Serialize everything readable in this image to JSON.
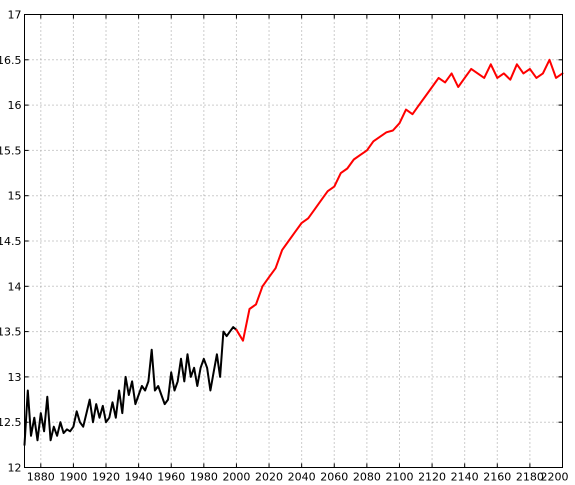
{
  "chart_data": {
    "type": "line",
    "title": "",
    "xlabel": "",
    "ylabel": "",
    "xlim": [
      1870,
      2200
    ],
    "ylim": [
      12,
      17
    ],
    "grid": true,
    "x_ticks": [
      1880,
      1900,
      1920,
      1940,
      1960,
      1980,
      2000,
      2020,
      2040,
      2060,
      2080,
      2100,
      2120,
      2140,
      2160,
      2180,
      2200
    ],
    "x_tick_labels": [
      "1880",
      "1900",
      "1920",
      "1940",
      "1960",
      "1980",
      "2000",
      "2020",
      "2040",
      "2060",
      "2080",
      "2100",
      "2120",
      "2140",
      "2160",
      "2180",
      "2200"
    ],
    "y_ticks": [
      12,
      12.5,
      13,
      13.5,
      14,
      14.5,
      15,
      15.5,
      16,
      16.5,
      17
    ],
    "y_tick_labels": [
      "12",
      "12.5",
      "13",
      "13.5",
      "14",
      "14.5",
      "15",
      "15.5",
      "16",
      "16.5",
      "17"
    ],
    "series": [
      {
        "color": "#000000",
        "x": [
          1870,
          1872,
          1874,
          1876,
          1878,
          1880,
          1882,
          1884,
          1886,
          1888,
          1890,
          1892,
          1894,
          1896,
          1898,
          1900,
          1902,
          1904,
          1906,
          1908,
          1910,
          1912,
          1914,
          1916,
          1918,
          1920,
          1922,
          1924,
          1926,
          1928,
          1930,
          1932,
          1934,
          1936,
          1938,
          1940,
          1942,
          1944,
          1946,
          1948,
          1950,
          1952,
          1954,
          1956,
          1958,
          1960,
          1962,
          1964,
          1966,
          1968,
          1970,
          1972,
          1974,
          1976,
          1978,
          1980,
          1982,
          1984,
          1986,
          1988,
          1990,
          1992,
          1994,
          1996,
          1998,
          2000
        ],
        "values": [
          12.25,
          12.85,
          12.35,
          12.55,
          12.3,
          12.6,
          12.4,
          12.78,
          12.3,
          12.45,
          12.35,
          12.5,
          12.38,
          12.42,
          12.4,
          12.45,
          12.62,
          12.5,
          12.45,
          12.6,
          12.75,
          12.5,
          12.7,
          12.55,
          12.68,
          12.5,
          12.55,
          12.72,
          12.55,
          12.85,
          12.6,
          13.0,
          12.8,
          12.95,
          12.7,
          12.8,
          12.9,
          12.85,
          12.95,
          13.3,
          12.85,
          12.9,
          12.8,
          12.7,
          12.75,
          13.05,
          12.85,
          12.95,
          13.2,
          12.95,
          13.25,
          13.0,
          13.1,
          12.9,
          13.1,
          13.2,
          13.1,
          12.85,
          13.05,
          13.25,
          13.0,
          13.5,
          13.45,
          13.5,
          13.55,
          13.52
        ]
      },
      {
        "color": "#ff0000",
        "x": [
          2000,
          2004,
          2008,
          2012,
          2016,
          2020,
          2024,
          2028,
          2032,
          2036,
          2040,
          2044,
          2048,
          2052,
          2056,
          2060,
          2064,
          2068,
          2072,
          2076,
          2080,
          2084,
          2088,
          2092,
          2096,
          2100,
          2104,
          2108,
          2112,
          2116,
          2120,
          2124,
          2128,
          2132,
          2136,
          2140,
          2144,
          2148,
          2152,
          2156,
          2160,
          2164,
          2168,
          2172,
          2176,
          2180,
          2184,
          2188,
          2192,
          2196,
          2200
        ],
        "values": [
          13.52,
          13.4,
          13.75,
          13.8,
          14.0,
          14.1,
          14.2,
          14.4,
          14.5,
          14.6,
          14.7,
          14.75,
          14.85,
          14.95,
          15.05,
          15.1,
          15.25,
          15.3,
          15.4,
          15.45,
          15.5,
          15.6,
          15.65,
          15.7,
          15.72,
          15.8,
          15.95,
          15.9,
          16.0,
          16.1,
          16.2,
          16.3,
          16.25,
          16.35,
          16.2,
          16.3,
          16.4,
          16.35,
          16.3,
          16.45,
          16.3,
          16.35,
          16.28,
          16.45,
          16.35,
          16.4,
          16.3,
          16.35,
          16.5,
          16.3,
          16.35
        ]
      }
    ]
  }
}
